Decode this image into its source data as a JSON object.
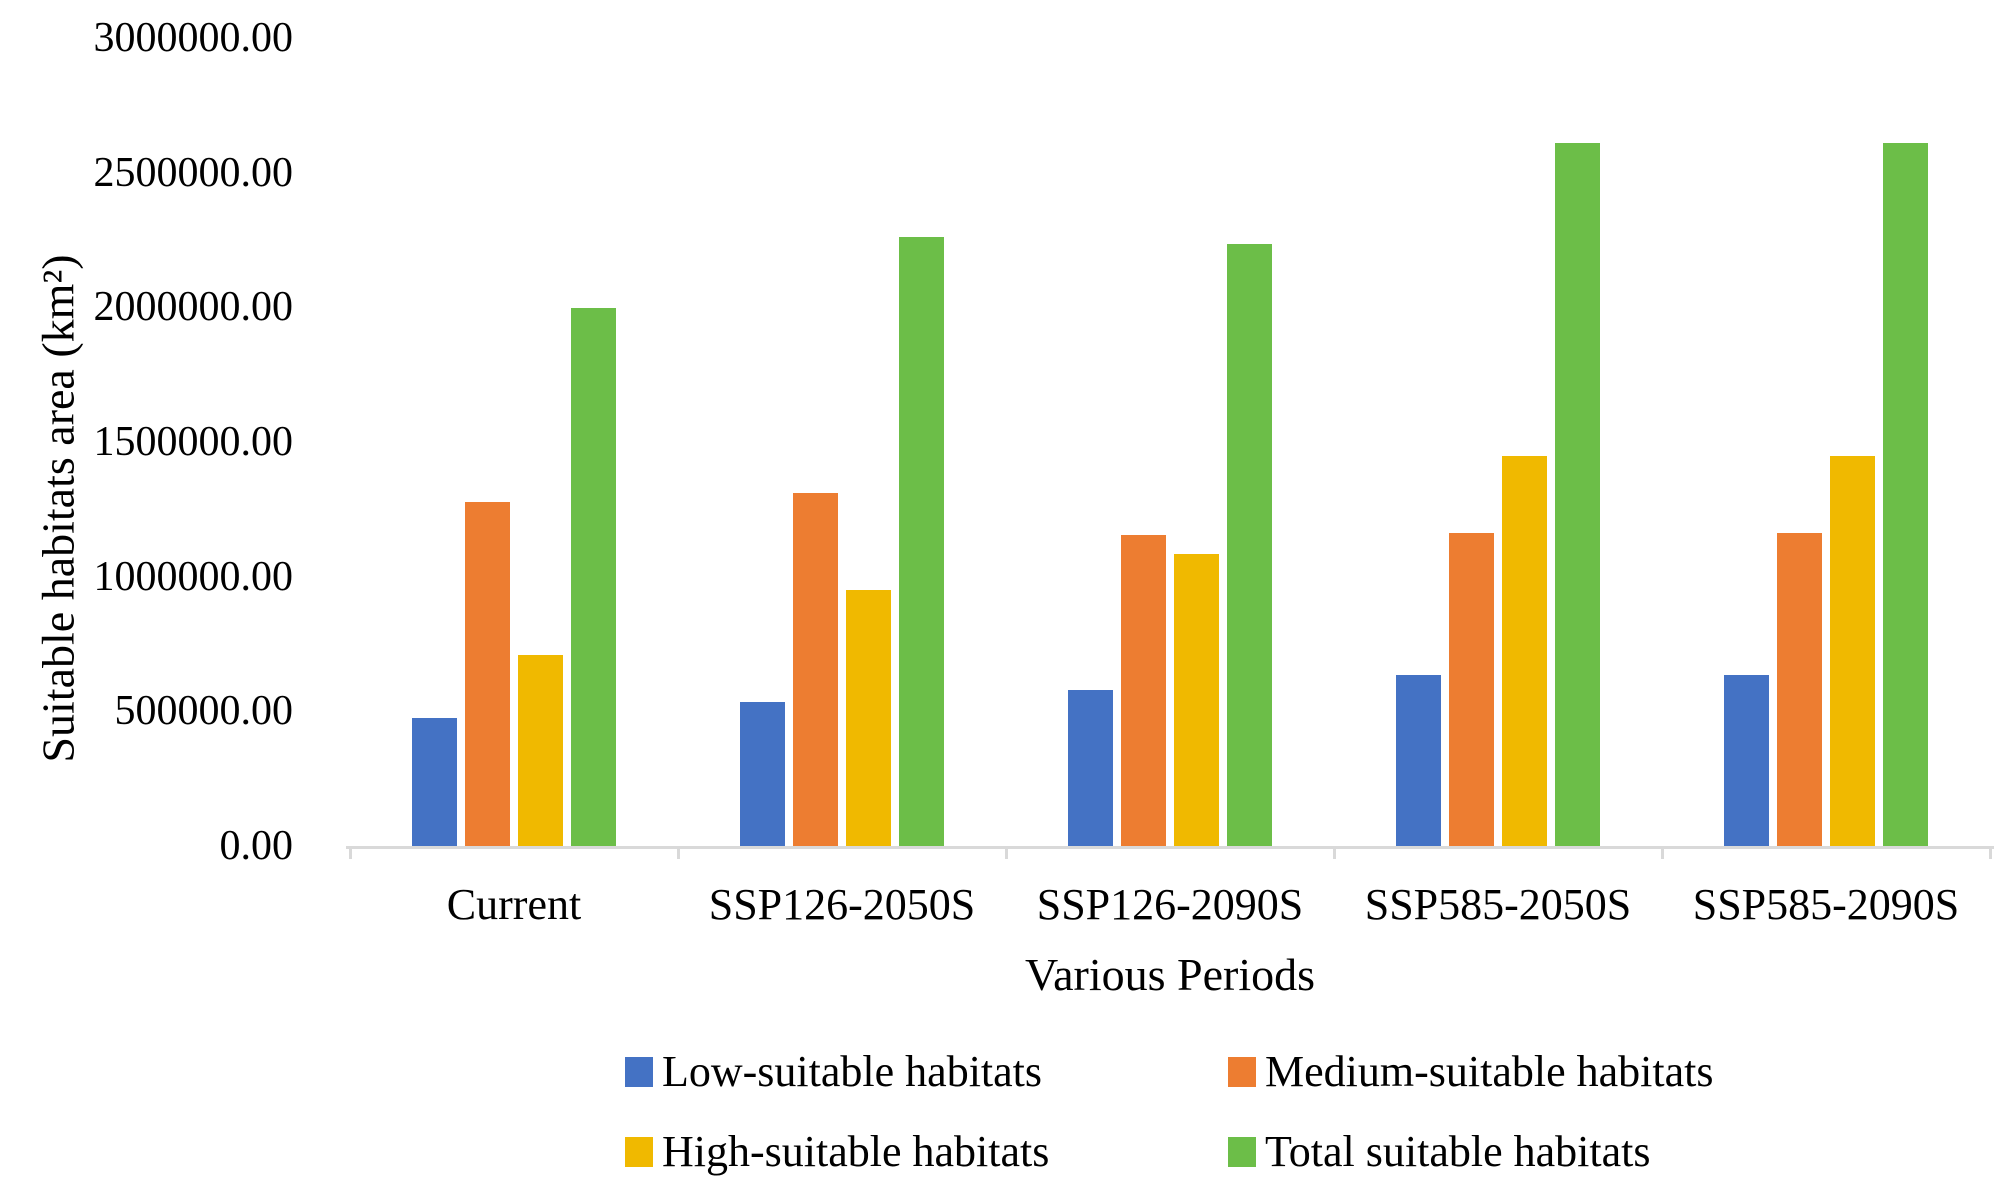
{
  "background_color": "#FFFFFF",
  "axis_color": "#D9D9D9",
  "text_color": "#000000",
  "chart_data": {
    "type": "bar",
    "title": "",
    "xlabel": "Various Periods",
    "ylabel": "Suitable habitats area  (km²)",
    "categories": [
      "Current",
      "SSP126-2050S",
      "SSP126-2090S",
      "SSP585-2050S",
      "SSP585-2090S"
    ],
    "series": [
      {
        "name": "Low-suitable habitats",
        "color": "#4472C4",
        "values": [
          475000,
          535000,
          579000,
          635000,
          635000
        ]
      },
      {
        "name": "Medium-suitable habitats",
        "color": "#ED7D31",
        "values": [
          1277000,
          1311000,
          1155000,
          1162000,
          1162000
        ]
      },
      {
        "name": "High-suitable habitats",
        "color": "#F0B900",
        "values": [
          709000,
          950000,
          1084000,
          1448000,
          1448000
        ]
      },
      {
        "name": "Total suitable habitats",
        "color": "#6CBE48",
        "values": [
          1997000,
          2261000,
          2235000,
          2610000,
          2610000
        ]
      }
    ],
    "ylim": [
      0,
      3000000
    ],
    "y_tick_interval": 500000,
    "y_tick_labels": [
      "3000000.00",
      "2500000.00",
      "2000000.00",
      "1500000.00",
      "1000000.00",
      "500000.00",
      "0.00"
    ],
    "grid": false,
    "legend_position": "bottom-two-columns"
  }
}
